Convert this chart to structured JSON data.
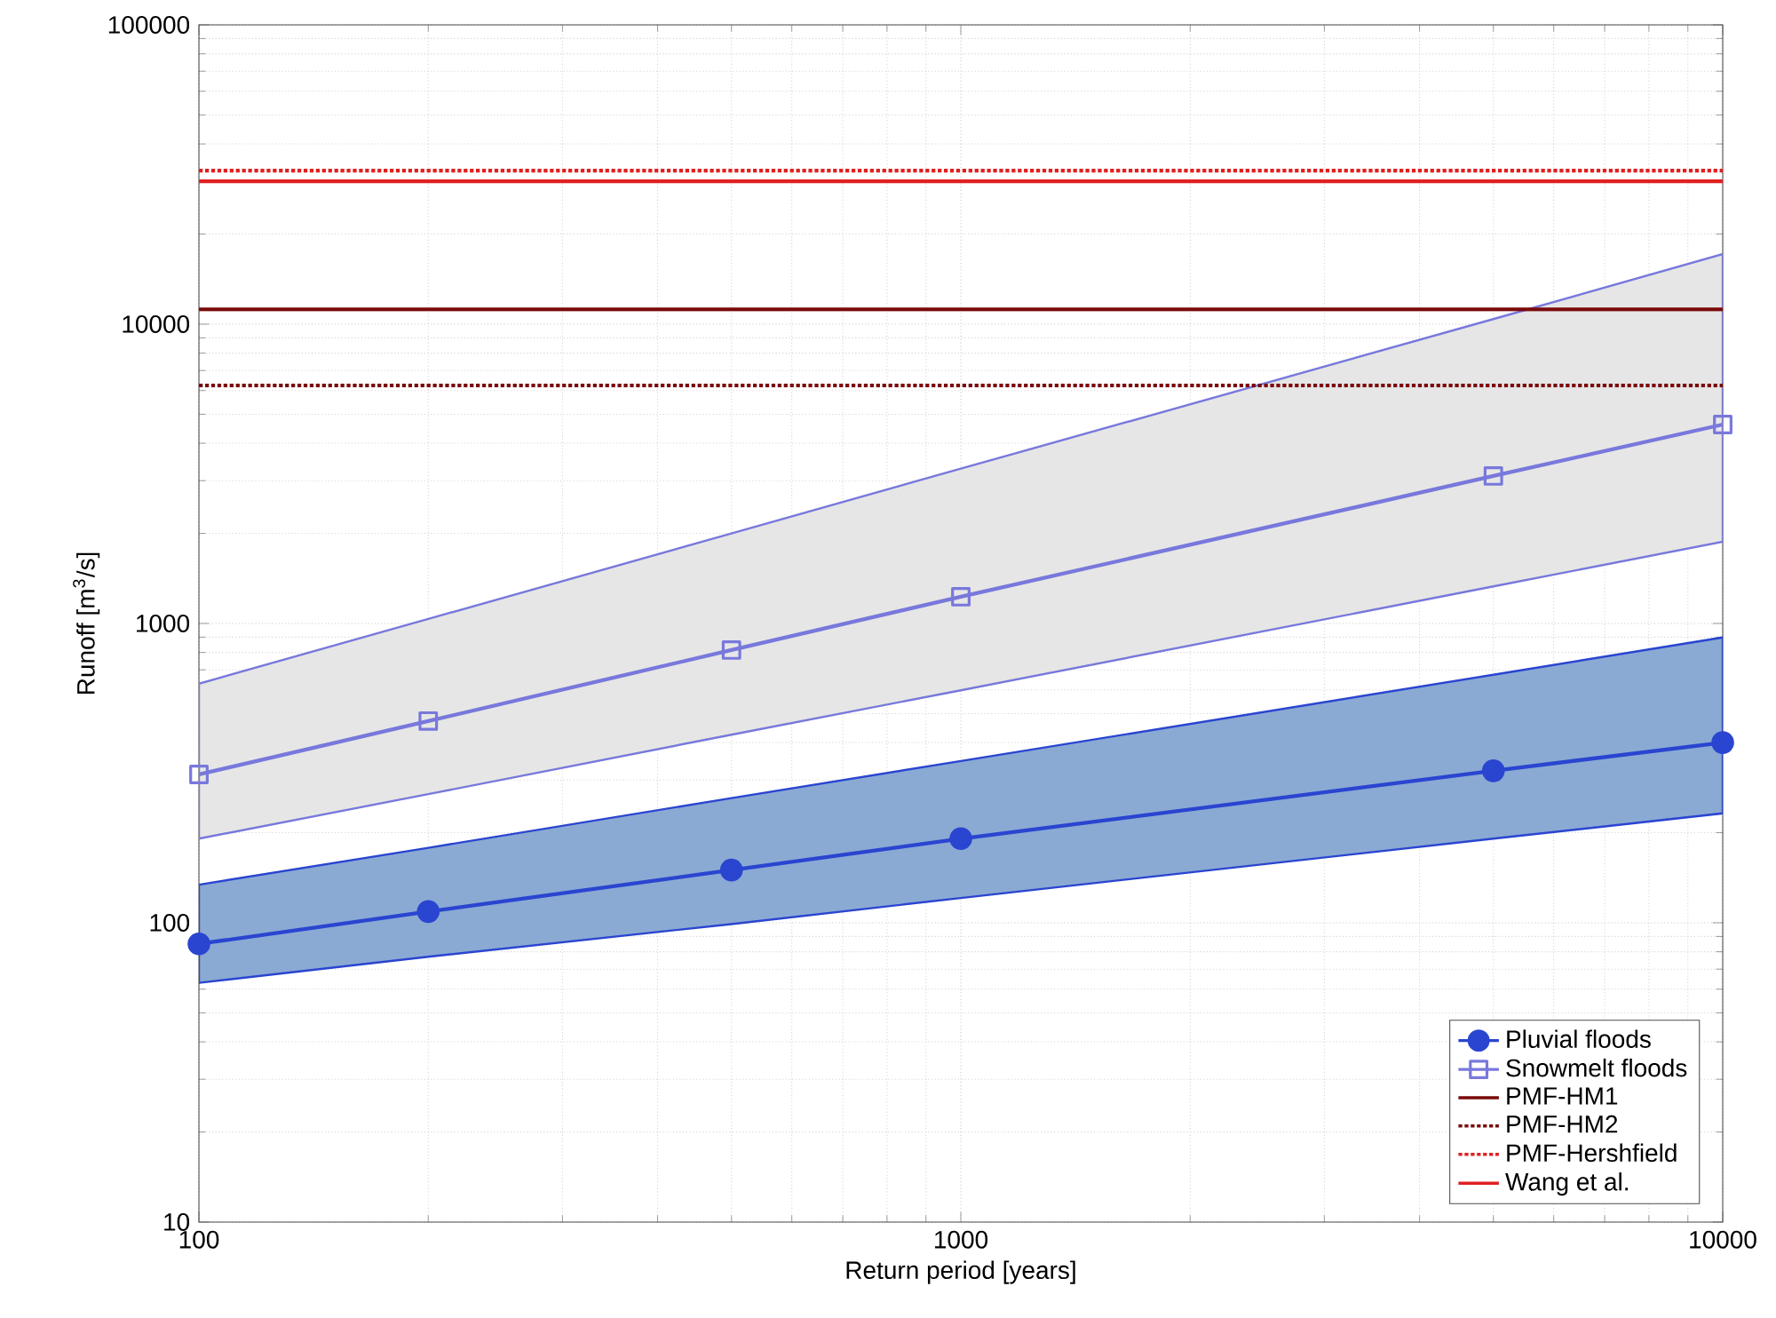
{
  "chart_data": {
    "type": "line",
    "xlabel": "Return period [years]",
    "ylabel": "Runoff [m$^{3}$/s]",
    "log": "xy",
    "grid": true,
    "legend": "bottom right",
    "xlim": [
      100,
      10000
    ],
    "ylim": [
      10,
      100000
    ],
    "xticks": [
      100,
      1000,
      10000
    ],
    "yticks": [
      10,
      100,
      1000,
      10000,
      100000
    ],
    "x": [
      100,
      200,
      500,
      1000,
      5000,
      10000
    ],
    "series": [
      {
        "name": "Pluvial floods",
        "color": "#2a45d0",
        "marker": "circle",
        "line_style": "solid",
        "values": [
          85,
          109,
          150,
          191,
          322,
          400
        ],
        "lower": [
          63,
          77,
          99,
          121,
          191,
          232
        ],
        "upper": [
          134,
          178,
          261,
          347,
          674,
          898
        ]
      },
      {
        "name": "Snowmelt floods",
        "color": "#7878dc",
        "marker": "square",
        "line_style": "solid",
        "values": [
          313,
          472,
          815,
          1228,
          3110,
          4620
        ],
        "lower": [
          191,
          269,
          425,
          598,
          1330,
          1875
        ],
        "upper": [
          629,
          1035,
          2000,
          3290,
          10400,
          17150
        ]
      }
    ],
    "ref_lines": [
      {
        "axis": "y",
        "value": 11200,
        "label": "PMF-HM1",
        "color": "#7a0a0a",
        "line_style": "solid"
      },
      {
        "axis": "y",
        "value": 6240,
        "label": "PMF-HM2",
        "color": "#7a0a0a",
        "line_style": "dotted"
      },
      {
        "axis": "y",
        "value": 32600,
        "label": "PMF-Hershfield",
        "color": "#e02020",
        "line_style": "dotted"
      },
      {
        "axis": "y",
        "value": 30000,
        "label": "Wang et al.",
        "color": "#e02020",
        "line_style": "solid"
      }
    ]
  }
}
